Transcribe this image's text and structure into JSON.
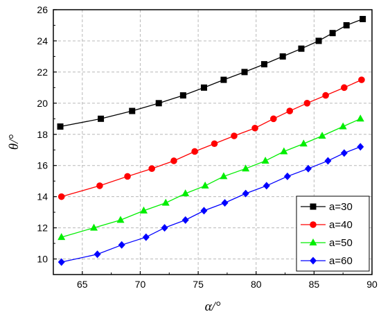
{
  "chart_data": {
    "type": "line",
    "xlabel": "α/°",
    "ylabel": "θ/°",
    "xlim": [
      62.5,
      90
    ],
    "ylim": [
      9,
      26
    ],
    "xticks": [
      65,
      70,
      75,
      80,
      85,
      90
    ],
    "yticks": [
      10,
      12,
      14,
      16,
      18,
      20,
      22,
      24,
      26
    ],
    "grid": true,
    "legend_position": "bottom-right",
    "series": [
      {
        "name": "a=30",
        "color": "#000000",
        "marker": "square",
        "x": [
          63.1,
          66.6,
          69.3,
          71.6,
          73.7,
          75.5,
          77.2,
          79.0,
          80.7,
          82.3,
          83.9,
          85.4,
          86.6,
          87.8,
          89.2
        ],
        "y": [
          18.5,
          19.0,
          19.5,
          20.0,
          20.5,
          21.0,
          21.5,
          22.0,
          22.5,
          23.0,
          23.5,
          24.0,
          24.5,
          25.0,
          25.4
        ]
      },
      {
        "name": "a=40",
        "color": "#ff0000",
        "marker": "circle",
        "x": [
          63.2,
          66.5,
          68.9,
          71.0,
          72.9,
          74.7,
          76.4,
          78.1,
          79.9,
          81.5,
          82.9,
          84.4,
          86.0,
          87.6,
          89.1
        ],
        "y": [
          14.0,
          14.7,
          15.3,
          15.8,
          16.3,
          16.9,
          17.4,
          17.9,
          18.4,
          19.0,
          19.5,
          20.0,
          20.5,
          21.0,
          21.5
        ]
      },
      {
        "name": "a=50",
        "color": "#00ee00",
        "marker": "triangle",
        "x": [
          63.2,
          66.0,
          68.3,
          70.3,
          72.2,
          73.9,
          75.6,
          77.2,
          79.1,
          80.8,
          82.4,
          84.1,
          85.7,
          87.5,
          89.0
        ],
        "y": [
          11.4,
          12.0,
          12.5,
          13.1,
          13.6,
          14.2,
          14.7,
          15.3,
          15.8,
          16.3,
          16.9,
          17.4,
          17.9,
          18.5,
          19.0
        ]
      },
      {
        "name": "a=60",
        "color": "#0000ff",
        "marker": "diamond",
        "x": [
          63.2,
          66.3,
          68.4,
          70.5,
          72.1,
          73.9,
          75.5,
          77.3,
          79.1,
          80.9,
          82.7,
          84.5,
          86.2,
          87.6,
          89.0
        ],
        "y": [
          9.8,
          10.3,
          10.9,
          11.4,
          12.0,
          12.5,
          13.1,
          13.6,
          14.2,
          14.7,
          15.3,
          15.8,
          16.3,
          16.8,
          17.2
        ]
      }
    ]
  }
}
